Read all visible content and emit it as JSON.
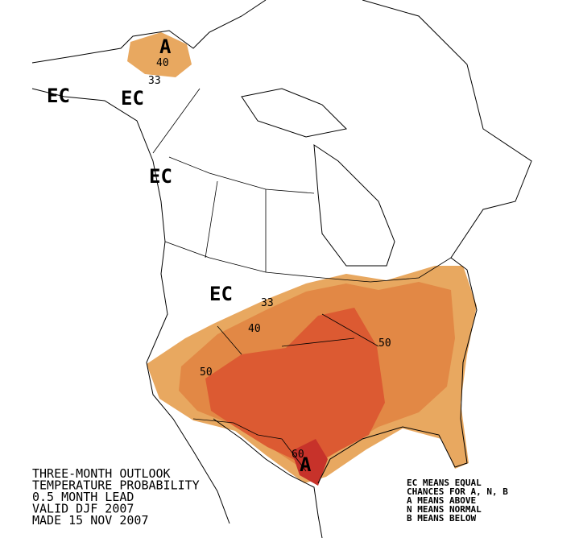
{
  "map": {
    "region_labels": [
      "EC",
      "EC",
      "EC",
      "EC",
      "A",
      "A"
    ],
    "contour_labels": [
      40,
      33,
      33,
      40,
      50,
      50,
      60
    ],
    "title_lines": [
      "THREE-MONTH OUTLOOK",
      "TEMPERATURE PROBABILITY",
      "0.5 MONTH LEAD",
      "VALID DJF 2007",
      "MADE 15 NOV 2007"
    ],
    "legend_lines": [
      "EC MEANS EQUAL",
      "CHANCES FOR A, N, B",
      "A MEANS ABOVE",
      "N MEANS NORMAL",
      "B MEANS BELOW"
    ]
  }
}
